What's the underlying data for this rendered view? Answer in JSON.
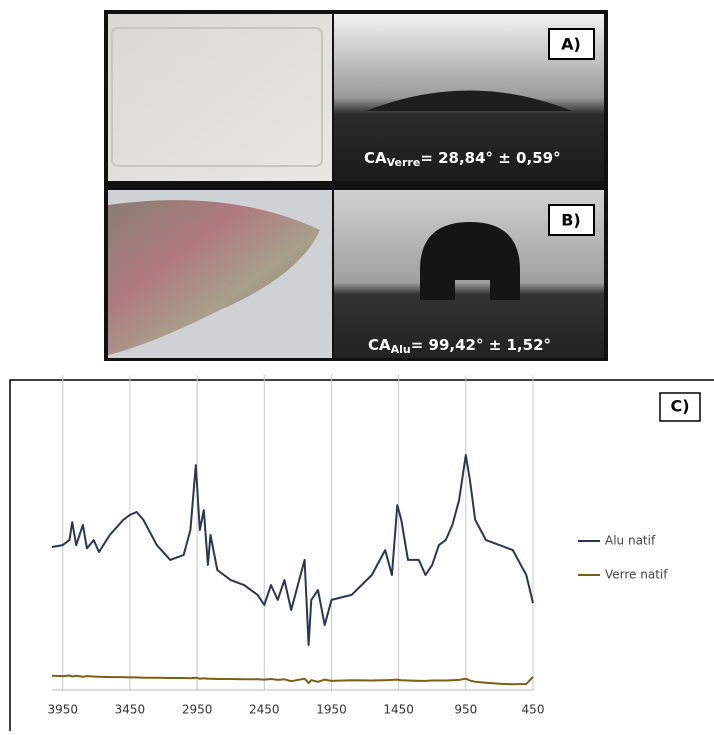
{
  "panels": {
    "a": {
      "label": "A)",
      "caption_main": "CA",
      "caption_sub": "Verre",
      "caption_rest": "= 28,84° ± 0,59°"
    },
    "b": {
      "label": "B)",
      "caption_main": "CA",
      "caption_sub": "Alu",
      "caption_rest": "= 99,42° ± 1,52°"
    }
  },
  "chart_data": {
    "type": "line",
    "label": "C)",
    "x": [
      4030,
      3950,
      3900,
      3880,
      3850,
      3800,
      3770,
      3720,
      3680,
      3600,
      3500,
      3450,
      3400,
      3350,
      3250,
      3150,
      3050,
      3000,
      2960,
      2930,
      2900,
      2870,
      2850,
      2800,
      2700,
      2600,
      2500,
      2450,
      2400,
      2350,
      2300,
      2250,
      2150,
      2120,
      2100,
      2050,
      2000,
      1950,
      1800,
      1650,
      1550,
      1500,
      1460,
      1430,
      1380,
      1300,
      1250,
      1200,
      1150,
      1100,
      1050,
      1000,
      950,
      920,
      880,
      800,
      700,
      600,
      500,
      450
    ],
    "series": [
      {
        "name": "Alu natif",
        "color": "#2b3652",
        "values": [
          45.4,
          46,
          47.6,
          53.3,
          46,
          52.4,
          45,
          47.6,
          43.8,
          49.2,
          54,
          55.6,
          56.5,
          54,
          46,
          41.3,
          42.9,
          50.8,
          71.4,
          50.8,
          57.1,
          39.7,
          49.2,
          38.1,
          34.9,
          33.3,
          30.2,
          27,
          33.3,
          28.6,
          34.9,
          25.4,
          41.3,
          14.3,
          28.6,
          31.7,
          20.6,
          28.6,
          30.2,
          36.5,
          44.4,
          36.5,
          58.7,
          54,
          41.3,
          41.3,
          36.5,
          39.7,
          46,
          47.6,
          52.4,
          60.3,
          74.6,
          66.7,
          54,
          47.6,
          46,
          44.4,
          36.5,
          27.6
        ]
      },
      {
        "name": "Verre natif",
        "color": "#7d5f12",
        "values": [
          4.5,
          4.4,
          4.6,
          4.3,
          4.5,
          4.2,
          4.4,
          4.3,
          4.2,
          4.1,
          4.1,
          4,
          4,
          3.9,
          3.9,
          3.8,
          3.8,
          3.7,
          3.9,
          3.6,
          3.7,
          3.6,
          3.6,
          3.5,
          3.5,
          3.4,
          3.4,
          3.3,
          3.5,
          3.2,
          3.4,
          2.8,
          3.6,
          2.2,
          3.1,
          2.6,
          3.3,
          2.9,
          3.1,
          3.0,
          3.1,
          3.2,
          3.3,
          3.1,
          3.0,
          2.9,
          2.9,
          3.0,
          3.0,
          3.0,
          3.1,
          3.2,
          3.6,
          3.0,
          2.6,
          2.3,
          2.0,
          1.8,
          1.9,
          4.2
        ]
      }
    ],
    "xlim": [
      4030,
      450
    ],
    "xticks": [
      3950,
      3450,
      2950,
      2450,
      1950,
      1450,
      950,
      450
    ],
    "ylim": [
      0,
      100
    ],
    "grid": true,
    "legend": "right"
  }
}
